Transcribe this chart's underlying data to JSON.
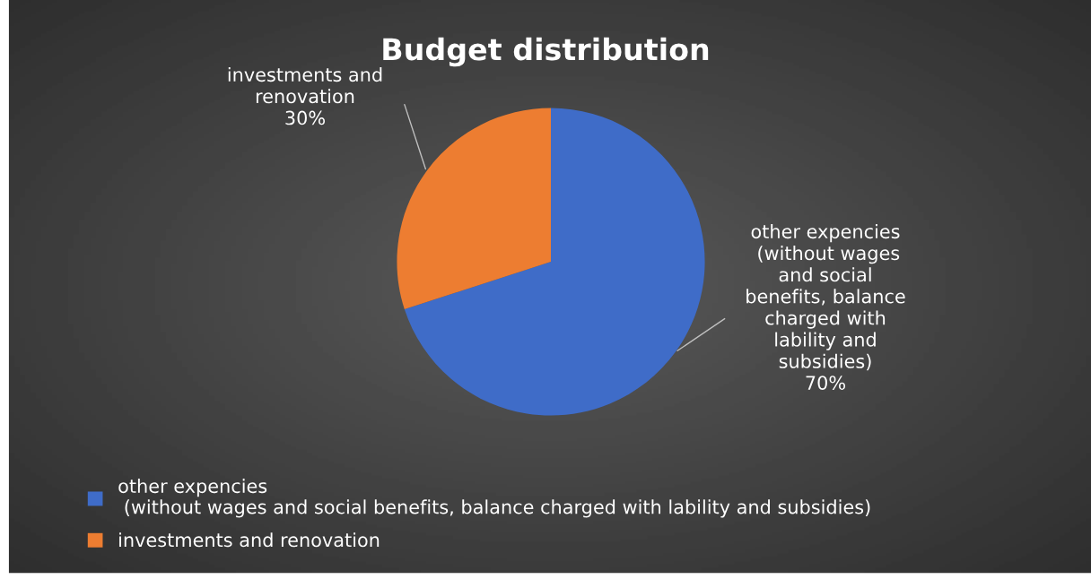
{
  "chart_data": {
    "type": "pie",
    "title": "Budget distribution",
    "categories": [
      "other expencies\n (without wages and social benefits, balance charged with lability and subsidies)",
      "investments and renovation"
    ],
    "values": [
      70,
      30
    ],
    "colors": [
      "#3f6cc8",
      "#ed7d31"
    ],
    "value_labels": [
      "70%",
      "30%"
    ],
    "annotations": [
      "other expencies\n (without wages\nand social\nbenefits, balance\ncharged with\nlability and\nsubsidies)",
      "investments and\nrenovation"
    ],
    "legend": "bottom left"
  }
}
